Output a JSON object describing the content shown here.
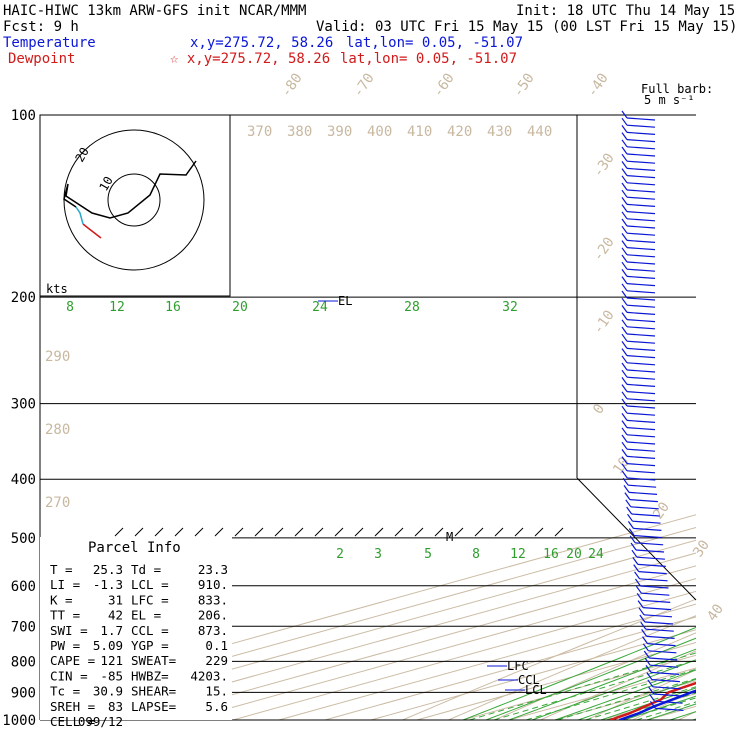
{
  "header": {
    "model": "HAIC-HIWC 13km ARW-GFS init   NCAR/MMM",
    "init": "Init: 18 UTC Thu 14 May 15",
    "fcst": "Fcst:    9 h",
    "valid": "Valid: 03 UTC Fri 15 May 15 (00 LST Fri 15 May 15)",
    "temp_label": "Temperature",
    "temp_xy": "x,y=275.72, 58.26",
    "temp_latlon": "lat,lon=  0.05, -51.07",
    "dew_label": "Dewpoint",
    "dew_xy": "☆ x,y=275.72, 58.26",
    "dew_latlon": "lat,lon=  0.05, -51.07"
  },
  "barb_key": {
    "line1": "Full barb:",
    "line2": "5 m s⁻¹"
  },
  "hodograph": {
    "unit_label": "kts",
    "ring_labels": [
      "10",
      "20"
    ]
  },
  "parcel_info": {
    "title": "Parcel Info",
    "rows": [
      [
        "T  =",
        "25.3",
        "Td =",
        "23.3"
      ],
      [
        "LI =",
        "-1.3",
        "LCL =",
        "910."
      ],
      [
        "K  =",
        "31",
        "LFC =",
        "833."
      ],
      [
        "TT =",
        "42",
        "EL =",
        "206."
      ],
      [
        "SWI =",
        "1.7",
        "CCL =",
        "873."
      ],
      [
        "PW =",
        "5.09",
        "YGP =",
        "0.1"
      ],
      [
        "CAPE =",
        "121",
        "SWEAT=",
        "229"
      ],
      [
        "CIN =",
        "-85",
        "HWBZ=",
        "4203."
      ],
      [
        "Tc =",
        "30.9",
        "SHEAR=",
        "15."
      ],
      [
        "SREH =",
        "83",
        "LAPSE=",
        "5.6"
      ],
      [
        "CELL =",
        "099/12",
        "",
        ""
      ]
    ]
  },
  "level_labels": {
    "el": "EL",
    "lfc": "LFC",
    "ccl": "CCL",
    "lcl": "LCL",
    "m": "M"
  },
  "colors": {
    "temperature": "#0b17d6",
    "dewpoint": "#d11a1a",
    "isotherm": "#c8b8a0",
    "mixing": "#2f9e2f",
    "wind": "#0b17d6"
  },
  "chart_data": {
    "type": "line",
    "title": "",
    "xlabel": "",
    "ylabel": "",
    "y_axis": {
      "scale": "log",
      "reversed": true,
      "ticks": [
        100,
        200,
        300,
        400,
        500,
        600,
        700,
        800,
        900,
        1000
      ]
    },
    "isotherm_labels": [
      "-80",
      "-70",
      "-60",
      "-50",
      "-40",
      "-30",
      "-20",
      "-10",
      "0",
      "10",
      "20",
      "30",
      "40"
    ],
    "theta_labels": [
      "370",
      "380",
      "390",
      "400",
      "410",
      "420",
      "430",
      "440"
    ],
    "theta_left_labels": [
      "290",
      "280",
      "270"
    ],
    "mixing_ratio_labels_upper": [
      "8",
      "12",
      "16",
      "20",
      "24",
      "28",
      "32"
    ],
    "mixing_ratio_labels_lower": [
      "2",
      "3",
      "5",
      "8",
      "12",
      "16",
      "20",
      "24"
    ],
    "series": [
      {
        "name": "Temperature",
        "pressure": [
          1000,
          975,
          950,
          925,
          900,
          850,
          800,
          750,
          700,
          650,
          600,
          550,
          500,
          450,
          400,
          350,
          300,
          250,
          200,
          175,
          150,
          125,
          100
        ],
        "temp": [
          24.0,
          23.0,
          21.0,
          19.5,
          18.0,
          15.5,
          13.0,
          10.5,
          7.5,
          4.5,
          1.5,
          -2.0,
          -6.0,
          -10.5,
          -16.5,
          -22.5,
          -31.0,
          -41.5,
          -54.0,
          -62.0,
          -71.0,
          -80.0,
          -89.0
        ]
      },
      {
        "name": "Dewpoint",
        "pressure": [
          1000,
          975,
          950,
          925,
          900,
          850,
          800,
          750,
          700,
          650,
          600,
          550,
          500,
          475,
          450,
          425,
          400,
          385,
          370,
          350,
          320,
          300,
          275,
          250,
          225,
          200,
          175,
          150,
          125,
          100
        ],
        "dewpoint": [
          22.0,
          21.0,
          19.0,
          17.0,
          13.0,
          11.0,
          8.0,
          4.0,
          0.5,
          -4.0,
          -7.0,
          -11.0,
          -11.0,
          -15.0,
          -24.0,
          -38.0,
          -58.0,
          -75.0,
          -64.0,
          -46.0,
          -50.0,
          -64.0,
          -78.0,
          -87.0,
          -92.0,
          -96.0,
          -103.0,
          -108.0,
          -116.0,
          -124.0
        ]
      }
    ]
  }
}
